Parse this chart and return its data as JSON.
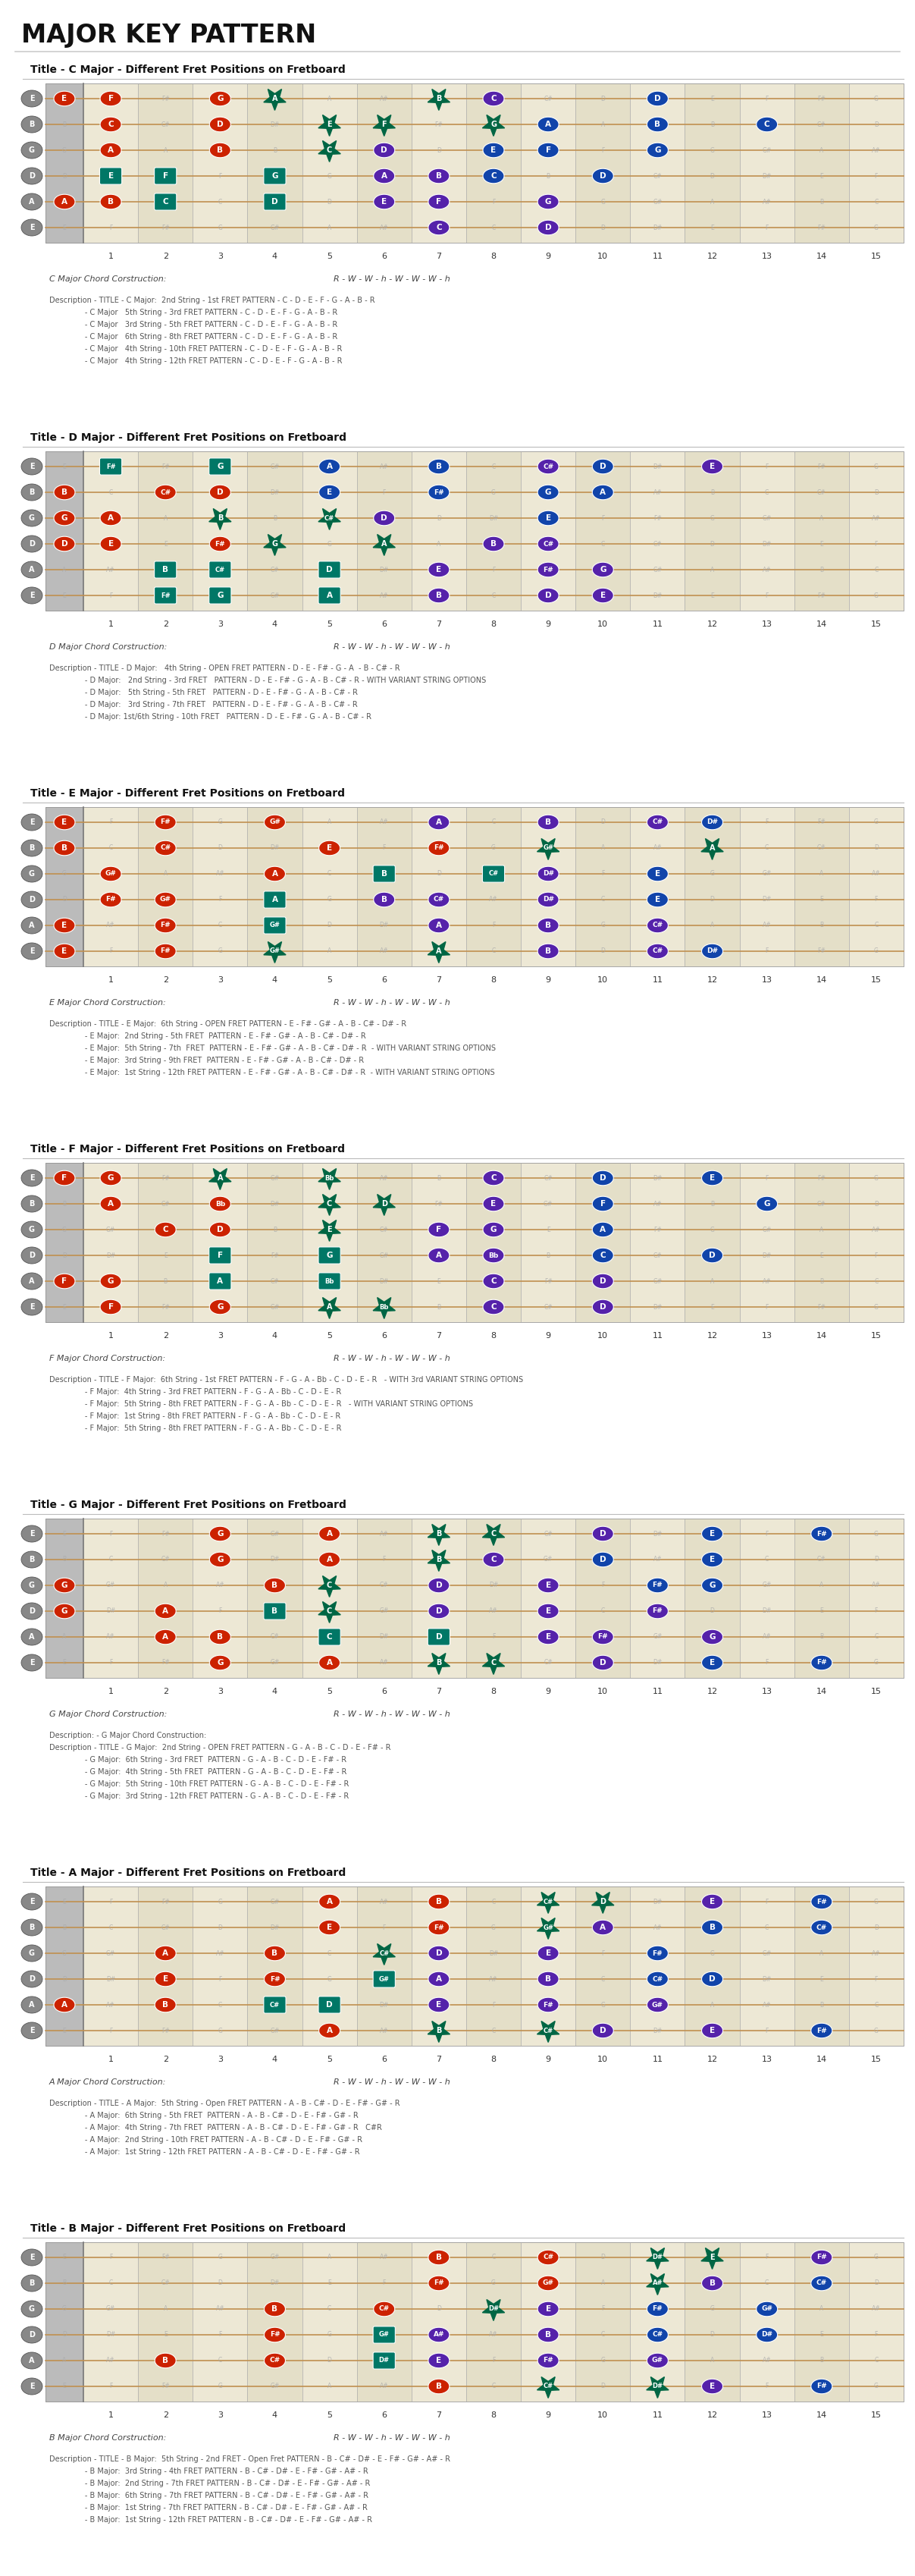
{
  "page_title": "MAJOR KEY PATTERN",
  "bg_color": "#ffffff",
  "fretboard_bg": "#ede8d5",
  "open_col_bg": "#bbbbbb",
  "fret_line_color": "#999999",
  "string_line_color": "#c09050",
  "string_labels": [
    "E",
    "B",
    "G",
    "D",
    "A",
    "E"
  ],
  "string_label_bg": "#888888",
  "fret_num_color": "#333333",
  "title_color": "#111111",
  "chord_text_color": "#444444",
  "desc_text_color": "#555555",
  "separator_color": "#bbbbbb",
  "ghost_note_color": "#aaaaaa",
  "RED": "#cc2200",
  "TEAL": "#007766",
  "GREEN": "#006644",
  "PURPLE": "#5522aa",
  "BLUE": "#1144aa",
  "sections": [
    {
      "key": "C",
      "title": "Title - C Major - Different Fret Positions on Fretboard",
      "chord_label": "C Major Chord Corstruction:",
      "pattern": "R - W - W - h - W - W - W - h",
      "desc": [
        "Description - TITLE - C Major:  2nd String - 1st FRET PATTERN - C - D - E - F - G - A - B - R",
        "               - C Major   5th String - 3rd FRET PATTERN - C - D - E - F - G - A - B - R",
        "               - C Major   3rd String - 5th FRET PATTERN - C - D - E - F - G - A - B - R",
        "               - C Major   6th String - 8th FRET PATTERN - C - D - E - F - G - A - B - R",
        "               - C Major   4th String - 10th FRET PATTERN - C - D - E - F - G - A - B - R",
        "               - C Major   4th String - 12th FRET PATTERN - C - D - E - F - G - A - B - R"
      ]
    },
    {
      "key": "D",
      "title": "Title - D Major - Different Fret Positions on Fretboard",
      "chord_label": "D Major Chord Corstruction:",
      "pattern": "R - W - W - h - W - W - W - h",
      "desc": [
        "Description - TITLE - D Major:   4th String - OPEN FRET PATTERN - D - E - F# - G - A  - B - C# - R",
        "               - D Major:   2nd String - 3rd FRET   PATTERN - D - E - F# - G - A - B - C# - R - WITH VARIANT STRING OPTIONS",
        "               - D Major:   5th String - 5th FRET   PATTERN - D - E - F# - G - A - B - C# - R",
        "               - D Major:   3rd String - 7th FRET   PATTERN - D - E - F# - G - A - B - C# - R",
        "               - D Major: 1st/6th String - 10th FRET   PATTERN - D - E - F# - G - A - B - C# - R"
      ]
    },
    {
      "key": "E",
      "title": "Title - E Major - Different Fret Positions on Fretboard",
      "chord_label": "E Major Chord Corstruction:",
      "pattern": "R - W - W - h - W - W - W - h",
      "desc": [
        "Description - TITLE - E Major:  6th String - OPEN FRET PATTERN - E - F# - G# - A - B - C# - D# - R",
        "               - E Major:  2nd String - 5th FRET  PATTERN - E - F# - G# - A - B - C# - D# - R",
        "               - E Major:  5th String - 7th  FRET  PATTERN - E - F# - G# - A - B - C# - D# - R  - WITH VARIANT STRING OPTIONS",
        "               - E Major:  3rd String - 9th FRET  PATTERN - E - F# - G# - A - B - C# - D# - R",
        "               - E Major:  1st String - 12th FRET PATTERN - E - F# - G# - A - B - C# - D# - R  - WITH VARIANT STRING OPTIONS"
      ]
    },
    {
      "key": "F",
      "title": "Title - F Major - Different Fret Positions on Fretboard",
      "chord_label": "F Major Chord Corstruction:",
      "pattern": "R - W - W - h - W - W - W - h",
      "desc": [
        "Description - TITLE - F Major:  6th String - 1st FRET PATTERN - F - G - A - Bb - C - D - E - R   - WITH 3rd VARIANT STRING OPTIONS",
        "               - F Major:  4th String - 3rd FRET PATTERN - F - G - A - Bb - C - D - E - R",
        "               - F Major:  5th String - 8th FRET PATTERN - F - G - A - Bb - C - D - E - R   - WITH VARIANT STRING OPTIONS",
        "               - F Major:  1st String - 8th FRET PATTERN - F - G - A - Bb - C - D - E - R",
        "               - F Major:  5th String - 8th FRET PATTERN - F - G - A - Bb - C - D - E - R"
      ]
    },
    {
      "key": "G",
      "title": "Title - G Major - Different Fret Positions on Fretboard",
      "chord_label": "G Major Chord Corstruction:",
      "pattern": "R - W - W - h - W - W - W - h",
      "desc": [
        "Description: - G Major Chord Construction:",
        "Description - TITLE - G Major:  2nd String - OPEN FRET PATTERN - G - A - B - C - D - E - F# - R",
        "               - G Major:  6th String - 3rd FRET  PATTERN - G - A - B - C - D - E - F# - R",
        "               - G Major:  4th String - 5th FRET  PATTERN - G - A - B - C - D - E - F# - R",
        "               - G Major:  5th String - 10th FRET PATTERN - G - A - B - C - D - E - F# - R",
        "               - G Major:  3rd String - 12th FRET PATTERN - G - A - B - C - D - E - F# - R"
      ]
    },
    {
      "key": "A",
      "title": "Title - A Major - Different Fret Positions on Fretboard",
      "chord_label": "A Major Chord Corstruction:",
      "pattern": "R - W - W - h - W - W - W - h",
      "desc": [
        "Description - TITLE - A Major:  5th String - Open FRET PATTERN - A - B - C# - D - E - F# - G# - R",
        "               - A Major:  6th String - 5th FRET  PATTERN - A - B - C# - D - E - F# - G# - R",
        "               - A Major:  4th String - 7th FRET  PATTERN - A - B - C# - D - E - F# - G# - R   C#R",
        "               - A Major:  2nd String - 10th FRET PATTERN - A - B - C# - D - E - F# - G# - R",
        "               - A Major:  1st String - 12th FRET PATTERN - A - B - C# - D - E - F# - G# - R"
      ]
    },
    {
      "key": "B",
      "title": "Title - B Major - Different Fret Positions on Fretboard",
      "chord_label": "B Major Chord Corstruction:",
      "pattern": "R - W - W - h - W - W - W - h",
      "desc": [
        "Description - TITLE - B Major:  5th String - 2nd FRET - Open Fret PATTERN - B - C# - D# - E - F# - G# - A# - R",
        "               - B Major:  3rd String - 4th FRET PATTERN - B - C# - D# - E - F# - G# - A# - R",
        "               - B Major:  2nd String - 7th FRET PATTERN - B - C# - D# - E - F# - G# - A# - R",
        "               - B Major:  6th String - 7th FRET PATTERN - B - C# - D# - E - F# - G# - A# - R",
        "               - B Major:  1st String - 7th FRET PATTERN - B - C# - D# - E - F# - G# - A# - R",
        "               - B Major:  1st String - 12th FRET PATTERN - B - C# - D# - E - F# - G# - A# - R"
      ]
    }
  ]
}
